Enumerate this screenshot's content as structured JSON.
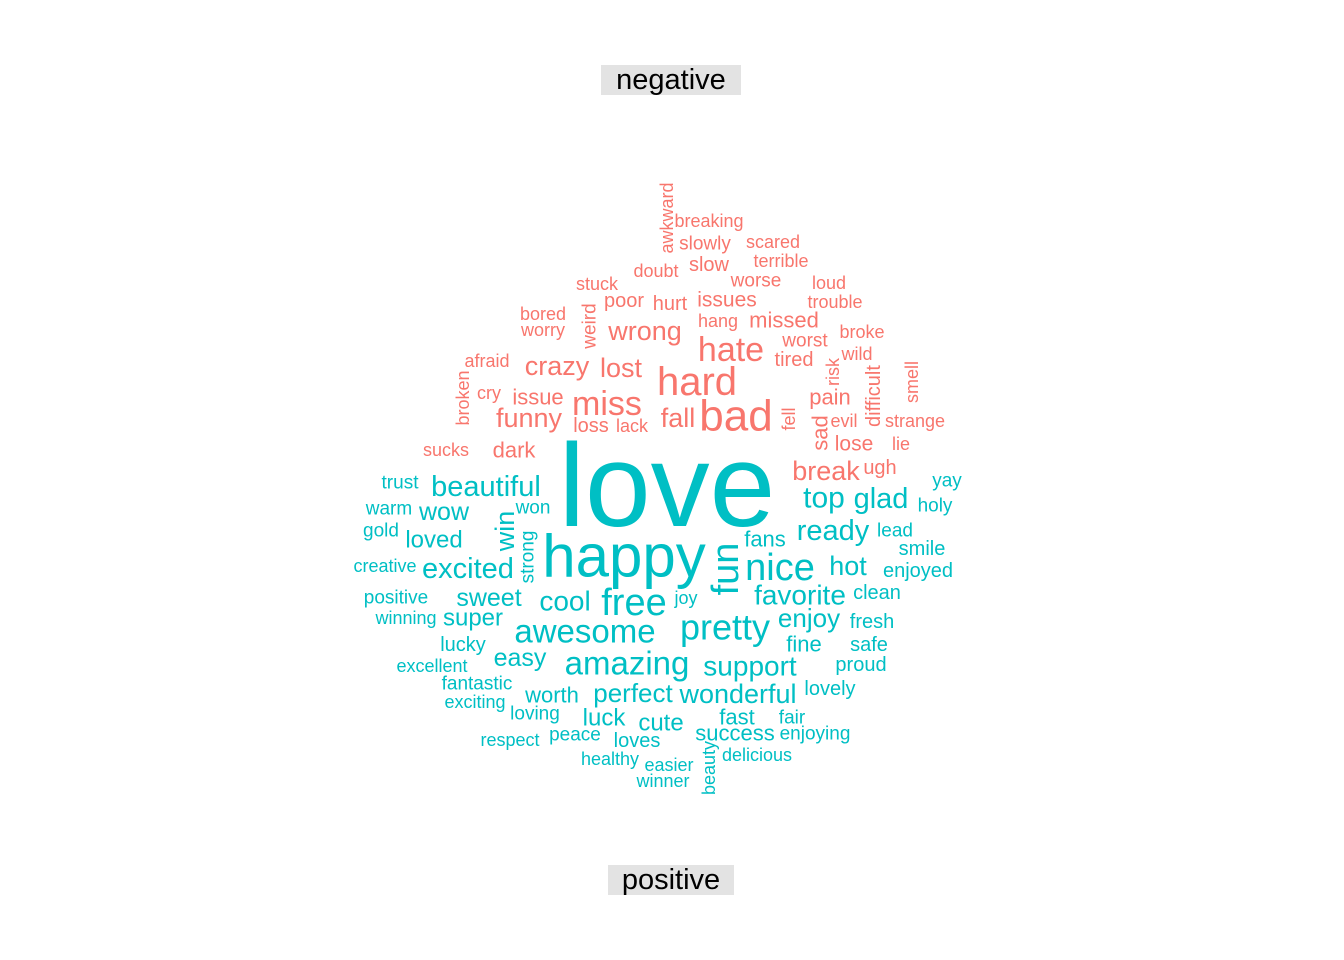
{
  "chart_data": {
    "type": "wordcloud",
    "comparison_groups": [
      {
        "name": "negative",
        "color": "#F8766D"
      },
      {
        "name": "positive",
        "color": "#00BFC4"
      }
    ],
    "words": {
      "negative": [
        "awkward",
        "breaking",
        "slowly",
        "scared",
        "slow",
        "terrible",
        "doubt",
        "stuck",
        "worse",
        "loud",
        "poor",
        "hurt",
        "issues",
        "trouble",
        "bored",
        "weird",
        "hang",
        "missed",
        "worry",
        "wrong",
        "broke",
        "worst",
        "hate",
        "afraid",
        "crazy",
        "tired",
        "wild",
        "lost",
        "risk",
        "smell",
        "hard",
        "broken",
        "cry",
        "difficult",
        "issue",
        "miss",
        "pain",
        "bad",
        "funny",
        "fall",
        "fell",
        "evil",
        "strange",
        "sad",
        "loss",
        "lack",
        "sucks",
        "lose",
        "lie",
        "dark",
        "break",
        "ugh"
      ],
      "positive": [
        "love",
        "happy",
        "trust",
        "beautiful",
        "yay",
        "top",
        "glad",
        "warm",
        "wow",
        "won",
        "win",
        "holy",
        "gold",
        "ready",
        "lead",
        "loved",
        "strong",
        "fans",
        "smile",
        "fun",
        "nice",
        "creative",
        "excited",
        "hot",
        "enjoyed",
        "favorite",
        "positive",
        "sweet",
        "cool",
        "free",
        "clean",
        "joy",
        "winning",
        "super",
        "enjoy",
        "fresh",
        "awesome",
        "pretty",
        "lucky",
        "fine",
        "safe",
        "easy",
        "amazing",
        "support",
        "excellent",
        "proud",
        "fantastic",
        "worth",
        "perfect",
        "wonderful",
        "lovely",
        "exciting",
        "loving",
        "luck",
        "cute",
        "fast",
        "fair",
        "respect",
        "peace",
        "success",
        "enjoying",
        "loves",
        "healthy",
        "delicious",
        "easier",
        "beauty",
        "winner"
      ]
    }
  }
}
